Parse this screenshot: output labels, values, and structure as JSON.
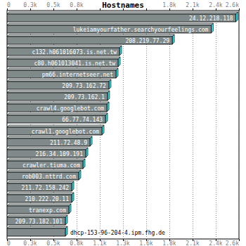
{
  "chart_data": {
    "type": "bar",
    "title": "Hostnames",
    "orientation": "horizontal",
    "categories": [
      "24.12.218.118",
      "lukeiamyourfather.searchyourfeelings.com",
      "208.219.77.29",
      "c132.h061016073.is.net.tw",
      "c80.h061013041.is.net.tw",
      "pm66.internetseer.net",
      "209.73.162.72",
      "209.73.162.1",
      "crawl4.googlebot.com",
      "66.77.74.143",
      "crawl1.googlebot.com",
      "211.72.48.9",
      "216.34.109.191",
      "crawler.tiuma.com",
      "rob003.nttrd.com",
      "211.72.158.242",
      "210.222.20.11",
      "tranexp.com",
      "209.73.182.101",
      "dhcp-153-96-204-4.ipm.fhg.de"
    ],
    "values": [
      2590,
      2310,
      1870,
      1273,
      1257,
      1233,
      1153,
      1137,
      1130,
      1114,
      1074,
      939,
      891,
      859,
      811,
      732,
      732,
      700,
      660,
      660
    ],
    "color": "#808a8a",
    "xlim": [
      0,
      2625
    ],
    "xticks": [
      {
        "value": 0,
        "label": "0"
      },
      {
        "value": 262.5,
        "label": "0.3k"
      },
      {
        "value": 525,
        "label": "0.5k"
      },
      {
        "value": 787.5,
        "label": "0.8k"
      },
      {
        "value": 1050,
        "label": "1.1k"
      },
      {
        "value": 1312.5,
        "label": "1.3k"
      },
      {
        "value": 1575,
        "label": "1.6k"
      },
      {
        "value": 1837.5,
        "label": "1.8k"
      },
      {
        "value": 2100,
        "label": "2.1k"
      },
      {
        "value": 2362.5,
        "label": "2.4k"
      },
      {
        "value": 2625,
        "label": "2.6k"
      }
    ],
    "grid": true
  }
}
